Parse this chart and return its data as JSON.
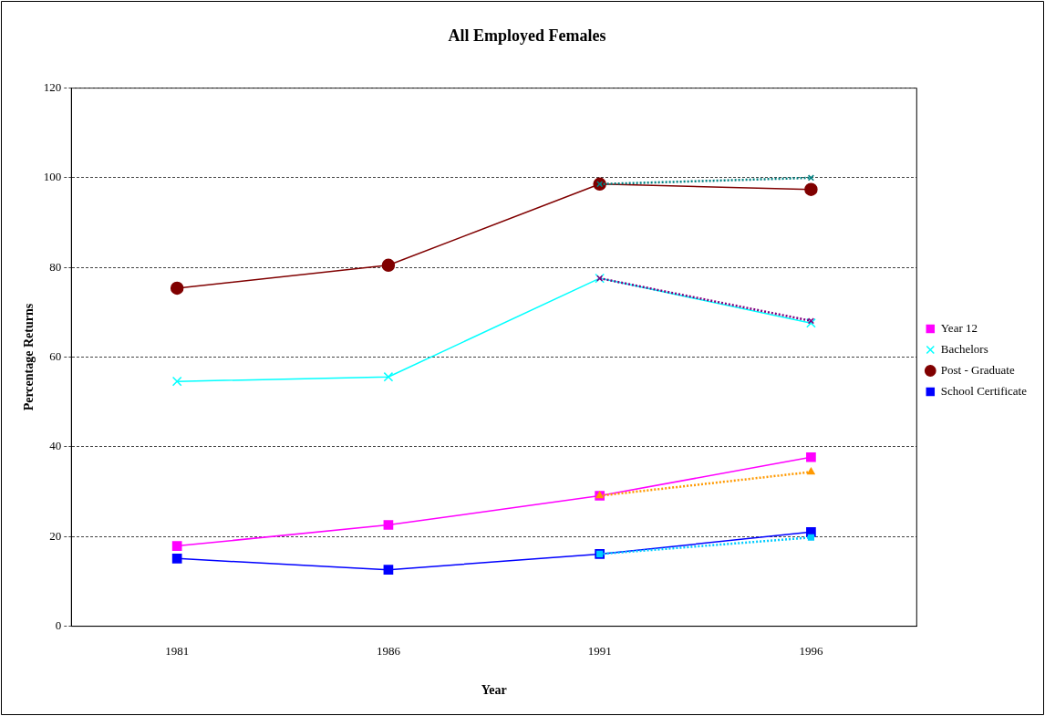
{
  "chart_data": {
    "type": "line",
    "title": "All Employed Females",
    "xlabel": "Year",
    "ylabel": "Percentage Returns",
    "categories": [
      "1981",
      "1986",
      "1991",
      "1996"
    ],
    "ylim": [
      0,
      120
    ],
    "yticks": [
      0,
      20,
      40,
      60,
      80,
      100,
      120
    ],
    "grid": "y",
    "legend": "right",
    "series": [
      {
        "name": "Year 12",
        "color": "#ff00ff",
        "marker": "square",
        "values": [
          17.9,
          22.6,
          29.1,
          37.7
        ]
      },
      {
        "name": "Bachelors",
        "color": "#00ffff",
        "marker": "cross",
        "values": [
          54.6,
          55.6,
          77.6,
          67.6
        ]
      },
      {
        "name": "Post - Graduate",
        "color": "#800000",
        "marker": "circle",
        "values": [
          75.4,
          80.5,
          98.6,
          97.4
        ]
      },
      {
        "name": "School Certificate",
        "color": "#0000ff",
        "marker": "square",
        "values": [
          15.1,
          12.6,
          16.1,
          21.0
        ]
      },
      {
        "color": "#008080",
        "marker": "cross",
        "line_style": "dotted",
        "values": [
          null,
          null,
          98.6,
          100.0
        ]
      },
      {
        "color": "#800080",
        "marker": "cross",
        "line_style": "dotted",
        "values": [
          null,
          null,
          77.6,
          68.1
        ]
      },
      {
        "color": "#ff9900",
        "marker": "triangle",
        "line_style": "dotted",
        "values": [
          null,
          null,
          29.1,
          34.4
        ]
      },
      {
        "color": "#00ccff",
        "marker": "square",
        "line_style": "dotted",
        "values": [
          null,
          null,
          16.1,
          19.8
        ]
      }
    ]
  }
}
